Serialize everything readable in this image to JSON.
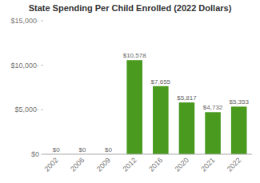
{
  "chart_data": {
    "type": "bar",
    "title": "State Spending Per Child Enrolled (2022 Dollars)",
    "categories": [
      "2002",
      "2006",
      "2009",
      "2012",
      "2016",
      "2020",
      "2021",
      "2022"
    ],
    "values": [
      0,
      0,
      0,
      10578,
      7655,
      5817,
      4732,
      5353
    ],
    "value_labels": [
      "$0",
      "$0",
      "$0",
      "$10,578",
      "$7,655",
      "$5,817",
      "$4,732",
      "$5,353"
    ],
    "data_labels": true,
    "color": "#4a9a1f",
    "ylim": [
      0,
      15000
    ],
    "yticks": [
      {
        "value": 0,
        "label": "$0"
      },
      {
        "value": 5000,
        "label": "$5,000·"
      },
      {
        "value": 10000,
        "label": "$10,000·"
      },
      {
        "value": 15000,
        "label": "$15,000·"
      }
    ],
    "grid": false
  }
}
